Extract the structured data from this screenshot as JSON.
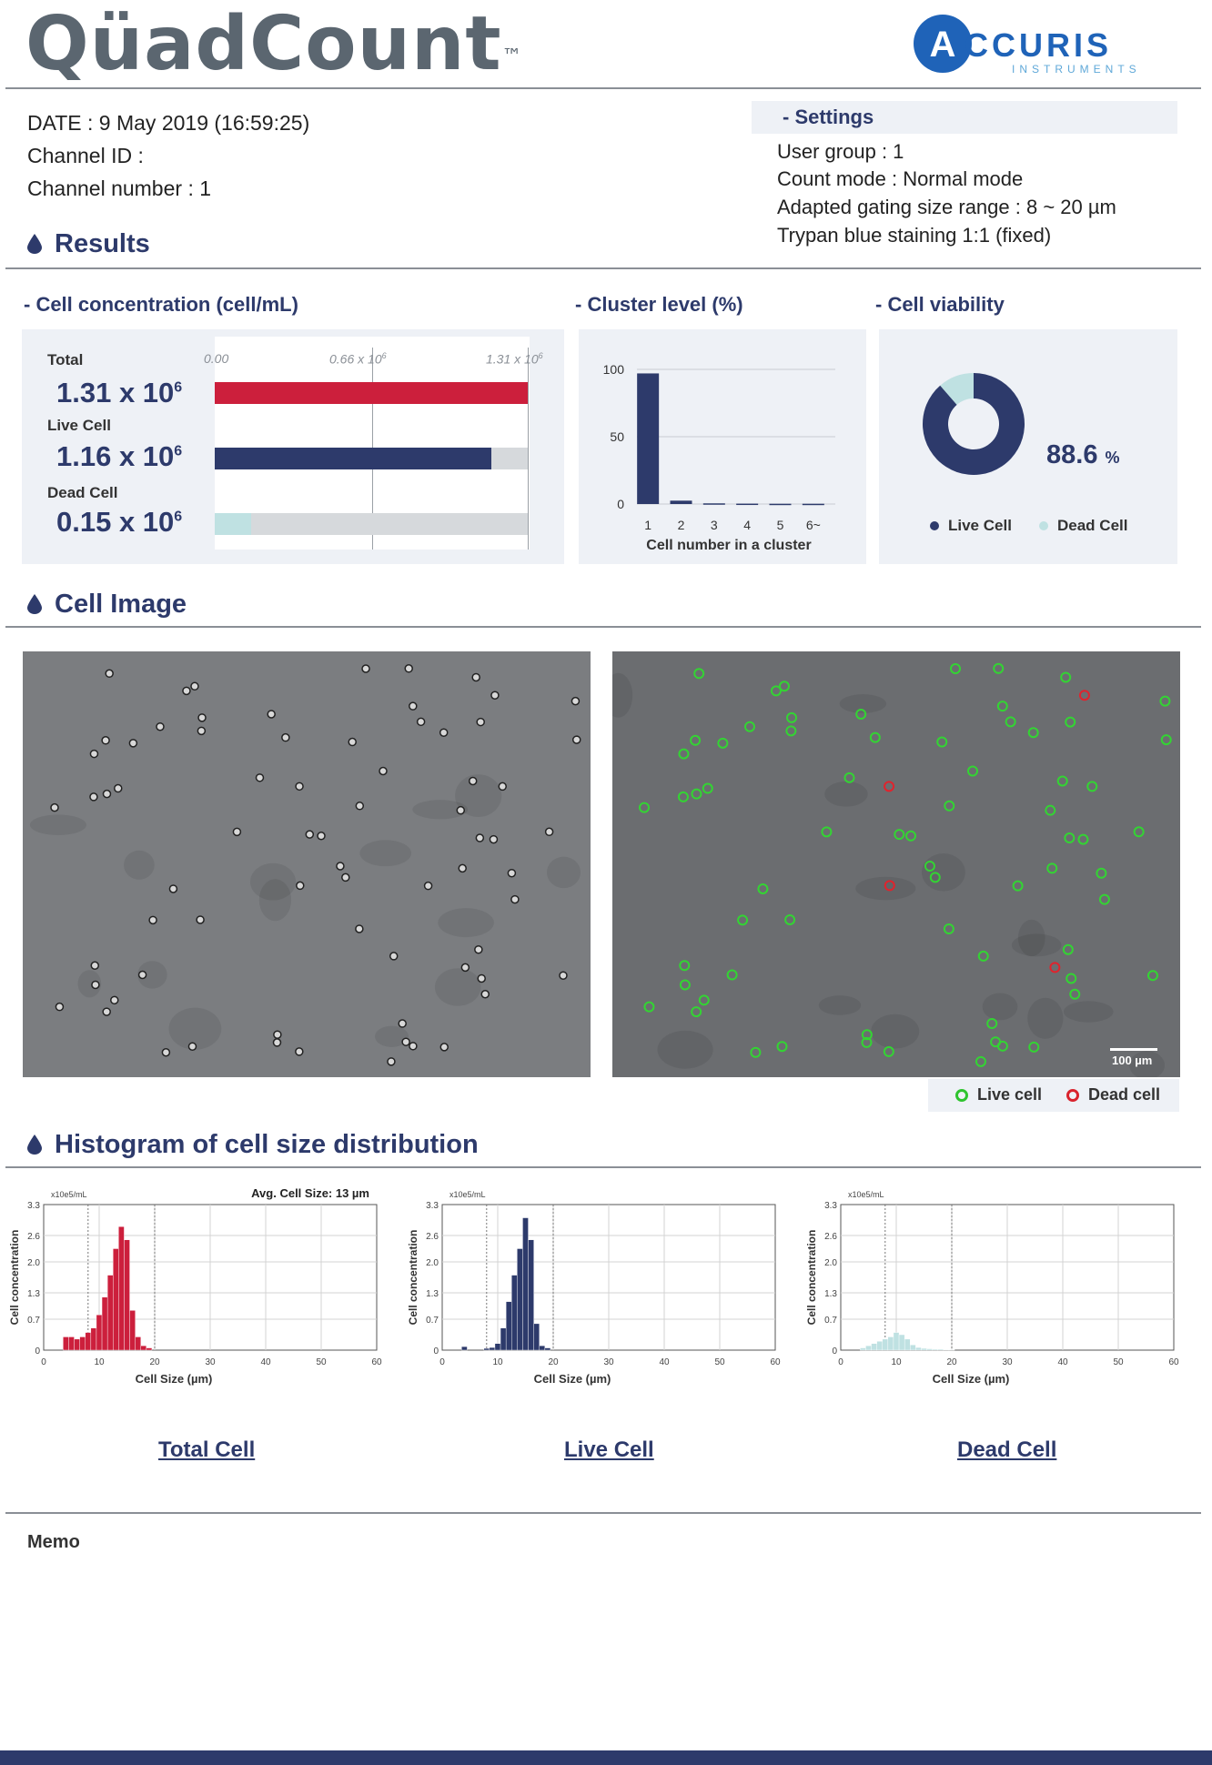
{
  "header": {
    "brand": "QüadCount",
    "tm": "™",
    "company": "ACCURIS",
    "company_sub": "INSTRUMENTS"
  },
  "info": {
    "date": "DATE : 9 May 2019 (16:59:25)",
    "channel_id": "Channel ID :",
    "channel_number": "Channel number : 1"
  },
  "settings": {
    "title": "- Settings",
    "user_group": "User group : 1",
    "count_mode": "Count mode : Normal mode",
    "gating": "Adapted gating size range :  8 ~ 20  µm",
    "staining": "Trypan blue staining 1:1 (fixed)"
  },
  "results": {
    "title": "Results",
    "concentration": {
      "title": "- Cell concentration (cell/mL)",
      "axis_ticks": [
        "0.00",
        "0.66 x 10",
        "1.31 x 10"
      ],
      "axis_exp": "6",
      "rows": [
        {
          "label": "Total",
          "value": "1.31 x 10",
          "exp": "6",
          "fraction": 1.0,
          "color": "#cc1f3c"
        },
        {
          "label": "Live Cell",
          "value": "1.16 x 10",
          "exp": "6",
          "fraction": 0.885,
          "color": "#2d3a6b"
        },
        {
          "label": "Dead Cell",
          "value": "0.15 x 10",
          "exp": "6",
          "fraction": 0.115,
          "color": "#bfe1e2"
        }
      ]
    },
    "cluster": {
      "title": "- Cluster level (%)",
      "yticks": [
        "100",
        "50",
        "0"
      ],
      "categories": [
        "1",
        "2",
        "3",
        "4",
        "5",
        "6~"
      ],
      "values": [
        97,
        2.5,
        0.5,
        0.3,
        0.2,
        0.2
      ],
      "ylim": [
        0,
        100
      ],
      "xlabel": "Cell number in a cluster"
    },
    "viability": {
      "title": "- Cell viability",
      "value": "88.6",
      "unit": "%",
      "live_fraction": 0.886,
      "legend_live": "Live Cell",
      "legend_dead": "Dead Cell",
      "live_color": "#2d3a6b",
      "dead_color": "#bfe1e2"
    }
  },
  "cell_image": {
    "title": "Cell Image",
    "scale_bar": "100 µm",
    "legend_live": "Live cell",
    "legend_dead": "Dead cell"
  },
  "histogram": {
    "title": "Histogram of cell size distribution",
    "unit_label": "x10e5/mL",
    "ylabel": "Cell concentration",
    "xlabel": "Cell Size (µm)",
    "avg_label": "Avg. Cell Size:  13  µm",
    "yticks": [
      "3.3",
      "2.6",
      "2.0",
      "1.3",
      "0.7",
      "0"
    ],
    "xticks": [
      "0",
      "10",
      "20",
      "30",
      "40",
      "50",
      "60"
    ]
  },
  "chart_data": [
    {
      "type": "bar",
      "title": "- Cell concentration (cell/mL)",
      "categories": [
        "Total",
        "Live Cell",
        "Dead Cell"
      ],
      "values": [
        1.31,
        1.16,
        0.15
      ],
      "unit": "x 10^6 cell/mL",
      "xlim": [
        0,
        1.31
      ]
    },
    {
      "type": "bar",
      "title": "- Cluster level (%)",
      "categories": [
        "1",
        "2",
        "3",
        "4",
        "5",
        "6~"
      ],
      "values": [
        97,
        2.5,
        0.5,
        0.3,
        0.2,
        0.2
      ],
      "xlabel": "Cell number in a cluster",
      "ylim": [
        0,
        100
      ]
    },
    {
      "type": "pie",
      "title": "- Cell viability",
      "categories": [
        "Live Cell",
        "Dead Cell"
      ],
      "values": [
        88.6,
        11.4
      ]
    },
    {
      "type": "bar",
      "name": "Total Cell",
      "xlabel": "Cell Size (µm)",
      "ylabel": "Cell concentration",
      "xlim": [
        0,
        60
      ],
      "ylim": [
        0,
        3.3
      ],
      "color": "#cc1f3c",
      "x": [
        4,
        5,
        6,
        7,
        8,
        9,
        10,
        11,
        12,
        13,
        14,
        15,
        16,
        17,
        18,
        19
      ],
      "values": [
        0.3,
        0.3,
        0.25,
        0.3,
        0.4,
        0.5,
        0.8,
        1.2,
        1.7,
        2.3,
        2.8,
        2.5,
        0.9,
        0.3,
        0.1,
        0.05
      ]
    },
    {
      "type": "bar",
      "name": "Live Cell",
      "xlabel": "Cell Size (µm)",
      "ylabel": "Cell concentration",
      "xlim": [
        0,
        60
      ],
      "ylim": [
        0,
        3.3
      ],
      "color": "#2d3a6b",
      "x": [
        4,
        8,
        9,
        10,
        11,
        12,
        13,
        14,
        15,
        16,
        17,
        18,
        19
      ],
      "values": [
        0.08,
        0.04,
        0.06,
        0.15,
        0.5,
        1.1,
        1.7,
        2.3,
        3.0,
        2.5,
        0.6,
        0.1,
        0.05
      ]
    },
    {
      "type": "bar",
      "name": "Dead Cell",
      "xlabel": "Cell Size (µm)",
      "ylabel": "Cell concentration",
      "xlim": [
        0,
        60
      ],
      "ylim": [
        0,
        3.3
      ],
      "color": "#bfe1e2",
      "x": [
        4,
        5,
        6,
        7,
        8,
        9,
        10,
        11,
        12,
        13,
        14,
        15,
        16,
        17,
        18,
        19,
        20
      ],
      "values": [
        0.05,
        0.1,
        0.15,
        0.2,
        0.25,
        0.3,
        0.4,
        0.35,
        0.25,
        0.12,
        0.06,
        0.04,
        0.03,
        0.02,
        0.02,
        0.01,
        0.01
      ]
    }
  ],
  "histogram_names": [
    "Total Cell",
    "Live Cell",
    "Dead Cell"
  ],
  "memo": {
    "label": "Memo"
  }
}
